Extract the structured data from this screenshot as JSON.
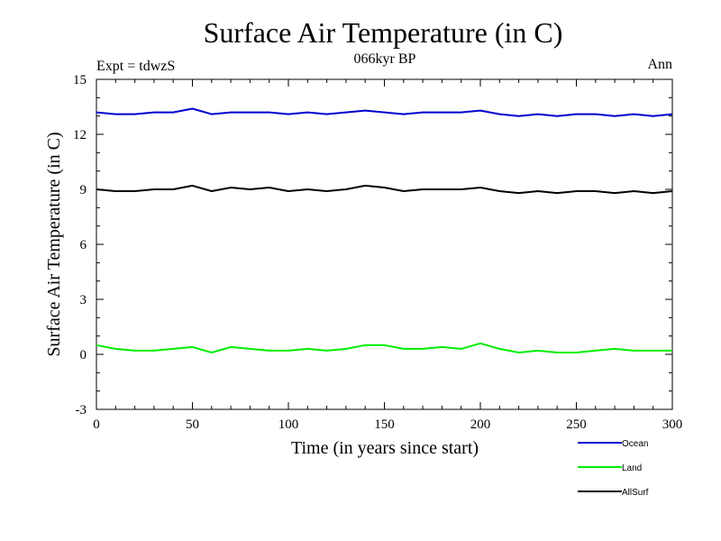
{
  "chart_data": {
    "type": "line",
    "title": "Surface Air Temperature (in C)",
    "subtitle": "066kyr BP",
    "left_label": "Expt = tdwzS",
    "right_label": "Ann",
    "xlabel": "Time (in years since start)",
    "ylabel": "Surface Air Temperature (in C)",
    "xlim": [
      0,
      300
    ],
    "ylim": [
      -3,
      15
    ],
    "xticks": [
      0,
      50,
      100,
      150,
      200,
      250,
      300
    ],
    "yticks": [
      -3,
      0,
      3,
      6,
      9,
      12,
      15
    ],
    "grid": false,
    "legend_position": "below-right",
    "series": [
      {
        "name": "Ocean",
        "color": "#0000d0",
        "x": [
          0,
          10,
          20,
          30,
          40,
          50,
          60,
          70,
          80,
          90,
          100,
          110,
          120,
          130,
          140,
          150,
          160,
          170,
          180,
          190,
          200,
          210,
          220,
          230,
          240,
          250,
          260,
          270,
          280,
          290,
          300
        ],
        "values": [
          13.2,
          13.1,
          13.1,
          13.2,
          13.2,
          13.4,
          13.1,
          13.2,
          13.2,
          13.2,
          13.1,
          13.2,
          13.1,
          13.2,
          13.3,
          13.2,
          13.1,
          13.2,
          13.2,
          13.2,
          13.3,
          13.1,
          13.0,
          13.1,
          13.0,
          13.1,
          13.1,
          13.0,
          13.1,
          13.0,
          13.1
        ]
      },
      {
        "name": "Land",
        "color": "#00ee00",
        "x": [
          0,
          10,
          20,
          30,
          40,
          50,
          60,
          70,
          80,
          90,
          100,
          110,
          120,
          130,
          140,
          150,
          160,
          170,
          180,
          190,
          200,
          210,
          220,
          230,
          240,
          250,
          260,
          270,
          280,
          290,
          300
        ],
        "values": [
          0.5,
          0.3,
          0.2,
          0.2,
          0.3,
          0.4,
          0.1,
          0.4,
          0.3,
          0.2,
          0.2,
          0.3,
          0.2,
          0.3,
          0.5,
          0.5,
          0.3,
          0.3,
          0.4,
          0.3,
          0.6,
          0.3,
          0.1,
          0.2,
          0.1,
          0.1,
          0.2,
          0.3,
          0.2,
          0.2,
          0.2
        ]
      },
      {
        "name": "AllSurf",
        "color": "#000000",
        "x": [
          0,
          10,
          20,
          30,
          40,
          50,
          60,
          70,
          80,
          90,
          100,
          110,
          120,
          130,
          140,
          150,
          160,
          170,
          180,
          190,
          200,
          210,
          220,
          230,
          240,
          250,
          260,
          270,
          280,
          290,
          300
        ],
        "values": [
          9.0,
          8.9,
          8.9,
          9.0,
          9.0,
          9.2,
          8.9,
          9.1,
          9.0,
          9.1,
          8.9,
          9.0,
          8.9,
          9.0,
          9.2,
          9.1,
          8.9,
          9.0,
          9.0,
          9.0,
          9.1,
          8.9,
          8.8,
          8.9,
          8.8,
          8.9,
          8.9,
          8.8,
          8.9,
          8.8,
          8.9
        ]
      }
    ]
  }
}
